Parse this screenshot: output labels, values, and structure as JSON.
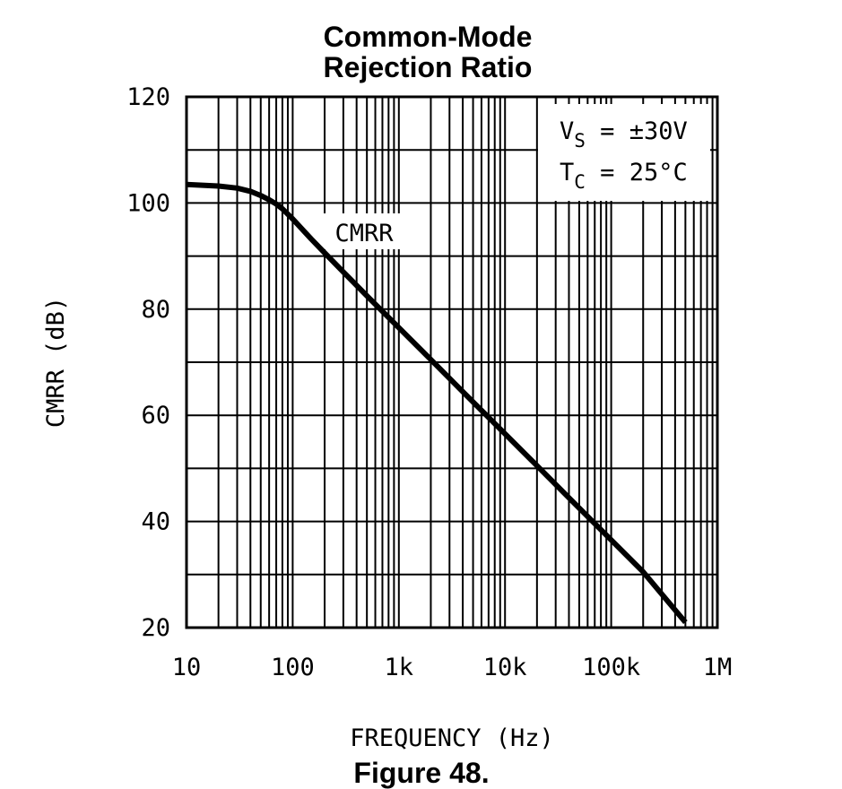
{
  "chart_data": {
    "type": "line",
    "title_line1": "Common-Mode",
    "title_line2": "Rejection Ratio",
    "xlabel": "FREQUENCY (Hz)",
    "ylabel": "CMRR (dB)",
    "x_scale": "log",
    "xlim": [
      10,
      1000000
    ],
    "ylim": [
      20,
      120
    ],
    "x_ticks": [
      10,
      100,
      1000,
      10000,
      100000,
      1000000
    ],
    "x_tick_labels": [
      "10",
      "100",
      "1k",
      "10k",
      "100k",
      "1M"
    ],
    "y_ticks": [
      20,
      40,
      60,
      80,
      100,
      120
    ],
    "y_tick_labels": [
      "20",
      "40",
      "60",
      "80",
      "100",
      "120"
    ],
    "grid": true,
    "series": [
      {
        "name": "CMRR",
        "x": [
          10,
          20,
          30,
          40,
          50,
          60,
          70,
          80,
          100,
          150,
          200,
          300,
          500,
          1000,
          2000,
          5000,
          10000,
          20000,
          50000,
          100000,
          200000,
          500000
        ],
        "y": [
          103.5,
          103.2,
          102.8,
          102.2,
          101.4,
          100.6,
          99.8,
          98.9,
          97.0,
          93.2,
          90.6,
          87.0,
          82.5,
          76.5,
          70.5,
          62.5,
          56.5,
          50.5,
          42.5,
          36.5,
          30.5,
          21.0
        ]
      }
    ],
    "annotations": {
      "series_label": "CMRR",
      "vs_main": "V",
      "vs_sub": "S",
      "vs_value": " = ±30V",
      "tc_main": "T",
      "tc_sub": "C",
      "tc_value": " = 25°C"
    }
  },
  "caption": "Figure 48."
}
